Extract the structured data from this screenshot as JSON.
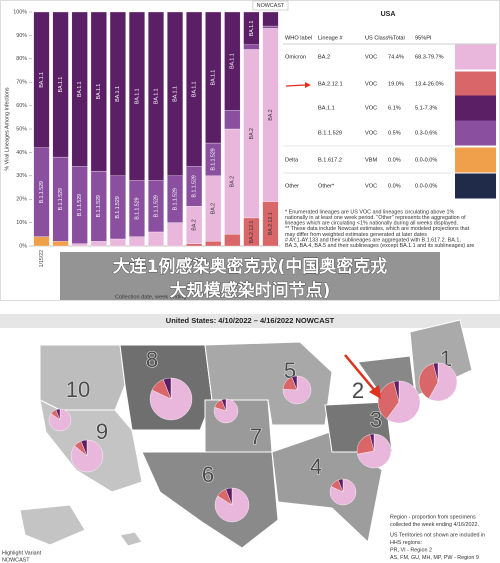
{
  "chart_data": {
    "type": "bar",
    "stacked": true,
    "y_label": "% Viral Lineages Among Infections",
    "x_label": "Collection date, week ending",
    "annotation": "NOWCAST",
    "categories": [
      "1/15/22",
      null,
      null,
      null,
      null,
      null,
      null,
      null,
      null,
      null,
      null,
      null,
      null
    ],
    "ylim": [
      0,
      100
    ],
    "yticks": [
      {
        "value": 0,
        "label": "0%"
      },
      {
        "value": 10,
        "label": "10%"
      },
      {
        "value": 20,
        "label": "20%"
      },
      {
        "value": 30,
        "label": "30%"
      },
      {
        "value": 40,
        "label": "40%"
      },
      {
        "value": 50,
        "label": "50%"
      },
      {
        "value": 60,
        "label": "60%"
      },
      {
        "value": 70,
        "label": "70%"
      },
      {
        "value": 80,
        "label": "80%"
      },
      {
        "value": 90,
        "label": "90%"
      },
      {
        "value": 100,
        "label": "100%"
      }
    ],
    "series": [
      {
        "name": "Delta",
        "color": "#f0a04b",
        "values": [
          4,
          2,
          0,
          0,
          0,
          0,
          0,
          0,
          0,
          0,
          0,
          0,
          0
        ]
      },
      {
        "name": "BA.2.12.1",
        "color": "#d9676a",
        "values": [
          0,
          0,
          0,
          0,
          0,
          0,
          0,
          0,
          1,
          2,
          5,
          12,
          19
        ]
      },
      {
        "name": "BA.2",
        "color": "#e9b6dc",
        "values": [
          0,
          0,
          1,
          2,
          3,
          4,
          6,
          10,
          16,
          28,
          45,
          72,
          74
        ]
      },
      {
        "name": "B.1.1.529",
        "color": "#8a4f9e",
        "values": [
          38,
          36,
          33,
          30,
          27,
          24,
          22,
          20,
          17,
          14,
          8,
          2,
          1
        ]
      },
      {
        "name": "BA.1.1",
        "color": "#5b1f66",
        "values": [
          58,
          62,
          66,
          68,
          70,
          72,
          72,
          70,
          66,
          56,
          42,
          14,
          6
        ]
      }
    ]
  },
  "table": {
    "title": "USA",
    "columns": [
      "WHO label",
      "Lineage #",
      "US Class",
      "%Total",
      "95%PI"
    ],
    "rows": [
      {
        "who": "Omicron",
        "lineage": "BA.2",
        "class": "VOC",
        "total": "74.4%",
        "pi": "68.3-79.7%",
        "color": "#e9b6dc"
      },
      {
        "lineage": "BA.2.12.1",
        "class": "VOC",
        "total": "19.0%",
        "pi": "13.4-26.0%",
        "color": "#d9676a"
      },
      {
        "lineage": "BA.1.1",
        "class": "VOC",
        "total": "6.1%",
        "pi": "5.1-7.3%",
        "color": "#5b1f66"
      },
      {
        "lineage": "B.1.1.529",
        "class": "VOC",
        "total": "0.5%",
        "pi": "0.3-0.6%",
        "color": "#8a4f9e"
      },
      {
        "who": "Delta",
        "lineage": "B.1.617.2",
        "class": "VBM",
        "total": "0.0%",
        "pi": "0.0-0.0%",
        "color": "#f0a04b"
      },
      {
        "who": "Other",
        "lineage": "Other*",
        "class": "VOC",
        "total": "0.0%",
        "pi": "0.0-0.0%",
        "color": "#1f2b48"
      }
    ]
  },
  "footnotes": [
    "*     Enumerated lineages are US VOC and lineages circulating above 1%",
    "nationally in at least one week period. \"Other\" represents the aggregation of",
    "lineages which are circulating <1% nationally during all weeks displayed.",
    "**    These data include Nowcast estimates, which are modeled projections that",
    "may differ from weighted estimates generated at later dates",
    "#     AY.1-AY.133 and their sublineages are aggregated with B.1.617.2. BA.1,",
    "BA.3, BA.4, BA.5 and their sublineages (except BA.1.1 and its sublineages) are"
  ],
  "overlay": {
    "lines": [
      "大连1例感染奥密克戎(中国奥密克戎",
      "大规模感染时间节点)"
    ]
  },
  "map": {
    "title": "United States: 4/10/2022 – 4/16/2022 NOWCAST",
    "pie_colors": [
      "#e9b6dc",
      "#d9676a",
      "#5b1f66"
    ],
    "regions": [
      {
        "label": "1",
        "shares": [
          58,
          38,
          4
        ]
      },
      {
        "label": "2",
        "shares": [
          60,
          36,
          4
        ]
      },
      {
        "label": "3",
        "shares": [
          72,
          24,
          4
        ]
      },
      {
        "label": "4",
        "shares": [
          82,
          12,
          6
        ]
      },
      {
        "label": "5",
        "shares": [
          76,
          18,
          6
        ]
      },
      {
        "label": "6",
        "shares": [
          84,
          10,
          6
        ]
      },
      {
        "label": "7",
        "shares": [
          80,
          14,
          6
        ]
      },
      {
        "label": "8",
        "shares": [
          82,
          12,
          6
        ]
      },
      {
        "label": "9",
        "shares": [
          86,
          8,
          6
        ]
      },
      {
        "label": "10",
        "shares": [
          85,
          9,
          6
        ]
      }
    ],
    "legend": [
      "Region - proportion from specimens",
      "collected the week ending 4/16/2022.",
      "US Territories not shown are included in",
      "HHS regions:",
      "PR, VI - Region 2",
      "AS, FM, GU, MH, MP, PW - Region 9"
    ],
    "side": [
      "Highlight Variant",
      "NOWCAST"
    ]
  }
}
